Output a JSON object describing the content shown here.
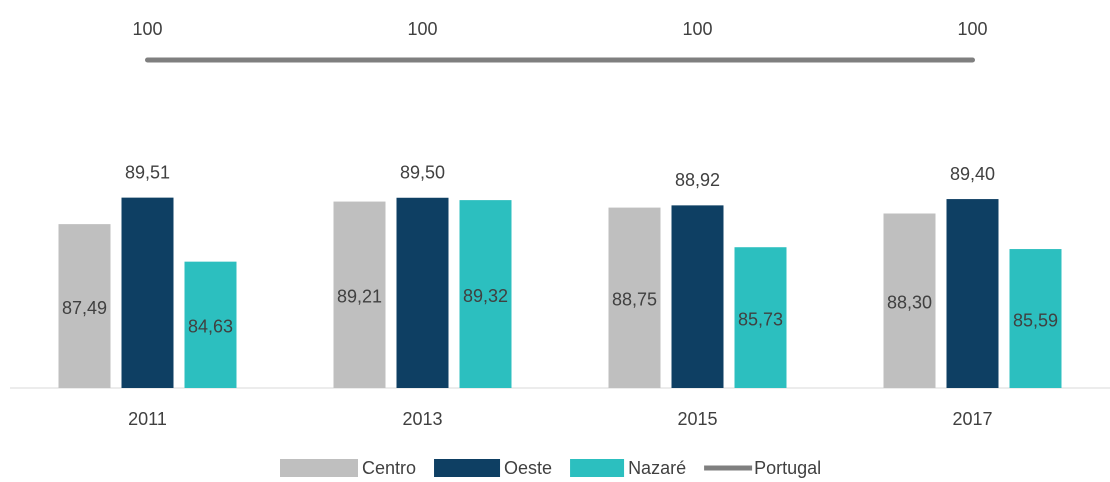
{
  "chart_data": {
    "type": "bar",
    "categories": [
      "2011",
      "2013",
      "2015",
      "2017"
    ],
    "series": [
      {
        "name": "Centro",
        "color": "#bfbfbf",
        "values": [
          87.49,
          89.21,
          88.75,
          88.3
        ],
        "value_labels": [
          "87,49",
          "89,21",
          "88,75",
          "88,30"
        ]
      },
      {
        "name": "Oeste",
        "color": "#0e3f63",
        "values": [
          89.51,
          89.5,
          88.92,
          89.4
        ],
        "value_labels": [
          "89,51",
          "89,50",
          "88,92",
          "89,40"
        ]
      },
      {
        "name": "Nazaré",
        "color": "#2cbfbf",
        "values": [
          84.63,
          89.32,
          85.73,
          85.59
        ],
        "value_labels": [
          "84,63",
          "89,32",
          "85,73",
          "85,59"
        ]
      },
      {
        "name": "Portugal",
        "type": "line",
        "color": "#7f7f7f",
        "values": [
          100,
          100,
          100,
          100
        ]
      }
    ],
    "ylim": [
      75,
      100
    ]
  }
}
